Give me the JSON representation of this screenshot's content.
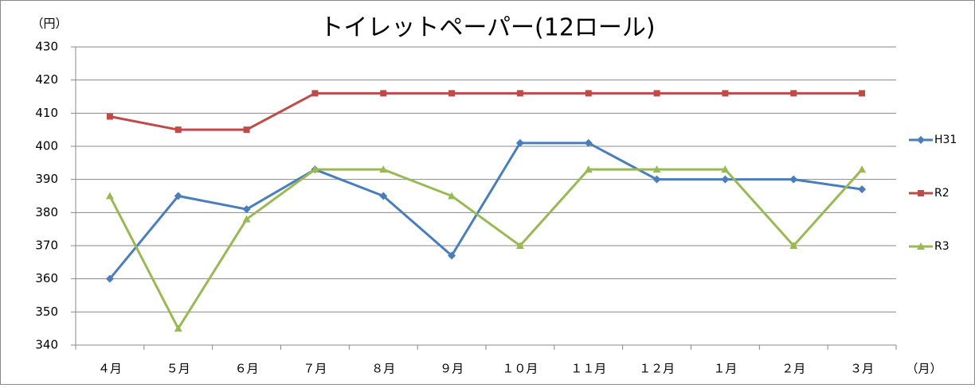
{
  "chart_data": {
    "type": "line",
    "title": "トイレットペーパー(12ロール)",
    "y_label": "（円）",
    "x_label": "（月）",
    "categories": [
      "４月",
      "５月",
      "６月",
      "７月",
      "８月",
      "９月",
      "１０月",
      "１１月",
      "１２月",
      "１月",
      "２月",
      "３月"
    ],
    "series": [
      {
        "name": "H31",
        "color": "#4a7ebb",
        "marker": "diamond",
        "values": [
          360,
          385,
          381,
          393,
          385,
          367,
          401,
          401,
          390,
          390,
          390,
          387
        ]
      },
      {
        "name": "R2",
        "color": "#be4b48",
        "marker": "square",
        "values": [
          409,
          405,
          405,
          416,
          416,
          416,
          416,
          416,
          416,
          416,
          416,
          416
        ]
      },
      {
        "name": "R3",
        "color": "#98b954",
        "marker": "triangle",
        "values": [
          385,
          345,
          378,
          393,
          393,
          385,
          370,
          393,
          393,
          393,
          370,
          393
        ]
      }
    ],
    "ylim": [
      340,
      430
    ],
    "yticks": [
      340,
      350,
      360,
      370,
      380,
      390,
      400,
      410,
      420,
      430
    ],
    "grid": true,
    "legend": "right"
  }
}
